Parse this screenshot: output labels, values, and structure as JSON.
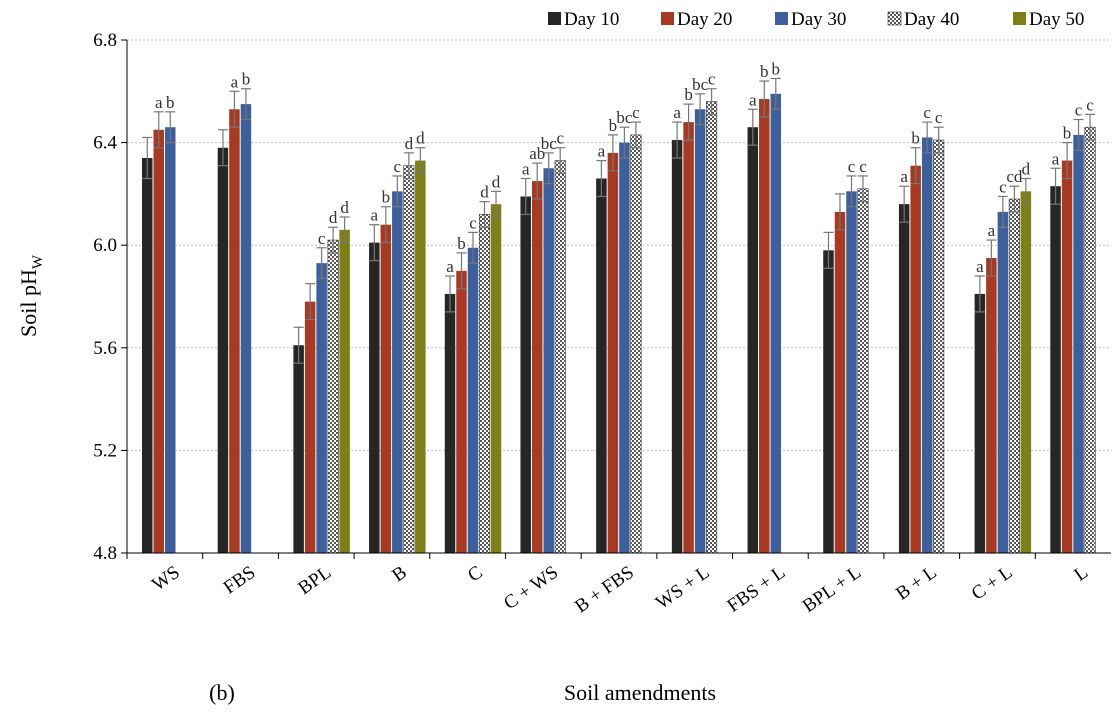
{
  "chart_data": {
    "type": "bar",
    "panel_label": "(b)",
    "xlabel": "Soil amendments",
    "ylabel_main": "Soil pH",
    "ylabel_sub": "W",
    "ylim": [
      4.8,
      6.8
    ],
    "yticks": [
      "4.8",
      "5.2",
      "5.6",
      "6.0",
      "6.4",
      "6.8"
    ],
    "ytick_values": [
      4.8,
      5.2,
      5.6,
      6.0,
      6.4,
      6.8
    ],
    "grid": "horizontal dotted",
    "legend_position": "top-right",
    "categories": [
      "WS",
      "FBS",
      "BPL",
      "B",
      "C",
      "C + WS",
      "B + FBS",
      "WS + L",
      "FBS + L",
      "BPL + L",
      "B + L",
      "C + L",
      "L"
    ],
    "series": [
      {
        "name": "Day 10",
        "color": "#262626",
        "pattern": "solid",
        "values": [
          6.34,
          6.38,
          5.61,
          6.01,
          5.81,
          6.19,
          6.26,
          6.41,
          6.46,
          5.98,
          6.16,
          5.81,
          6.23
        ],
        "errors": [
          0.08,
          0.07,
          0.07,
          0.07,
          0.07,
          0.07,
          0.07,
          0.07,
          0.07,
          0.07,
          0.07,
          0.07,
          0.07
        ],
        "letters": [
          "",
          "",
          "",
          "a",
          "a",
          "a",
          "a",
          "a",
          "a",
          "",
          "a",
          "a",
          "a"
        ]
      },
      {
        "name": "Day 20",
        "color": "#a63a22",
        "pattern": "solid",
        "values": [
          6.45,
          6.53,
          5.78,
          6.08,
          5.9,
          6.25,
          6.36,
          6.48,
          6.57,
          6.13,
          6.31,
          5.95,
          6.33
        ],
        "errors": [
          0.07,
          0.07,
          0.07,
          0.07,
          0.07,
          0.07,
          0.07,
          0.07,
          0.07,
          0.07,
          0.07,
          0.07,
          0.07
        ],
        "letters": [
          "a",
          "a",
          "",
          "b",
          "b",
          "ab",
          "b",
          "b",
          "b",
          "",
          "b",
          "a",
          "b"
        ]
      },
      {
        "name": "Day 30",
        "color": "#3d5f9c",
        "pattern": "solid",
        "values": [
          6.46,
          6.55,
          5.93,
          6.21,
          5.99,
          6.3,
          6.4,
          6.53,
          6.59,
          6.21,
          6.42,
          6.13,
          6.43
        ],
        "errors": [
          0.06,
          0.06,
          0.06,
          0.06,
          0.06,
          0.06,
          0.06,
          0.06,
          0.06,
          0.06,
          0.06,
          0.06,
          0.06
        ],
        "letters": [
          "b",
          "b",
          "c",
          "c",
          "c",
          "bc",
          "bc",
          "bc",
          "b",
          "c",
          "c",
          "c",
          "c"
        ]
      },
      {
        "name": "Day 40",
        "color": "#6b6b6b",
        "pattern": "checker",
        "values": [
          null,
          null,
          6.02,
          6.31,
          6.12,
          6.33,
          6.43,
          6.56,
          null,
          6.22,
          6.41,
          6.18,
          6.46
        ],
        "errors": [
          null,
          null,
          0.05,
          0.05,
          0.05,
          0.05,
          0.05,
          0.05,
          null,
          0.05,
          0.05,
          0.05,
          0.05
        ],
        "letters": [
          "",
          "",
          "d",
          "d",
          "d",
          "c",
          "c",
          "c",
          "",
          "c",
          "c",
          "cd",
          "c"
        ]
      },
      {
        "name": "Day 50",
        "color": "#7f7f1a",
        "pattern": "solid",
        "values": [
          null,
          null,
          6.06,
          6.33,
          6.16,
          null,
          null,
          null,
          null,
          null,
          null,
          6.21,
          null
        ],
        "errors": [
          null,
          null,
          0.05,
          0.05,
          0.05,
          null,
          null,
          null,
          null,
          null,
          null,
          0.05,
          null
        ],
        "letters": [
          "",
          "",
          "d",
          "d",
          "d",
          "",
          "",
          "",
          "",
          "",
          "",
          "d",
          ""
        ]
      }
    ]
  }
}
